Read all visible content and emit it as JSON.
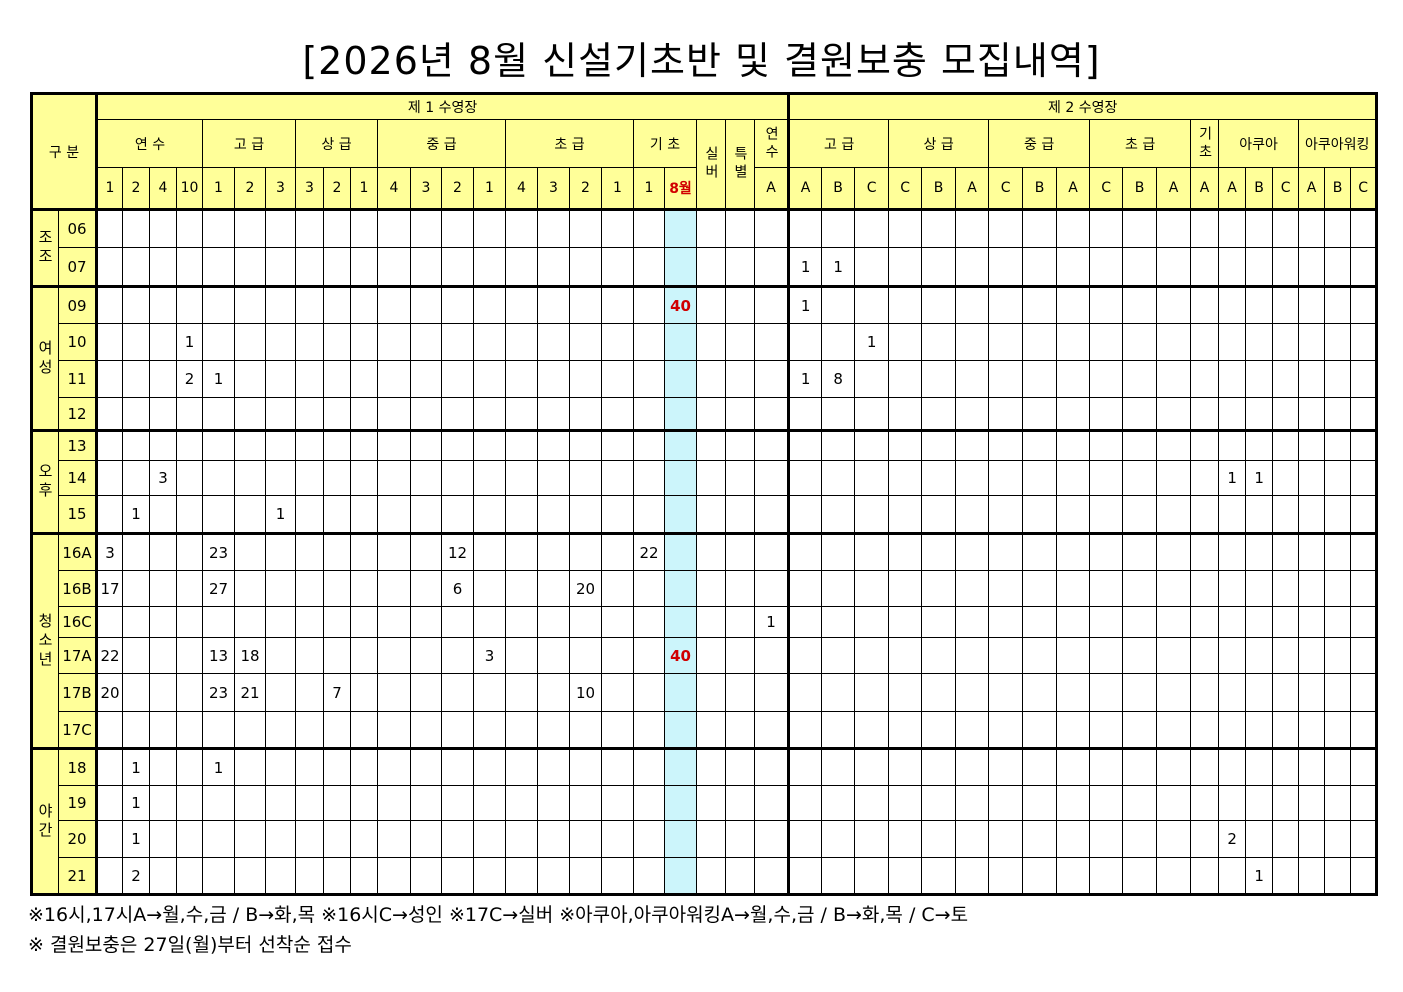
{
  "title": "[2026년 8월 신설기초반 및 결원보충 모집내역]",
  "header": {
    "corner": "구 분",
    "pools": [
      {
        "name": "제 1 수영장",
        "groups": [
          {
            "name": "연 수",
            "cols": [
              "1",
              "2",
              "4",
              "10"
            ]
          },
          {
            "name": "고 급",
            "cols": [
              "1",
              "2",
              "3"
            ]
          },
          {
            "name": "상 급",
            "cols": [
              "3",
              "2",
              "1"
            ]
          },
          {
            "name": "중 급",
            "cols": [
              "4",
              "3",
              "2",
              "1"
            ]
          },
          {
            "name": "초 급",
            "cols": [
              "4",
              "3",
              "2",
              "1"
            ]
          },
          {
            "name": "기 초",
            "cols": [
              "1",
              "8월"
            ]
          },
          {
            "name": "실버",
            "cols": []
          },
          {
            "name": "특별",
            "cols": []
          },
          {
            "name": "연수",
            "cols": [
              "A"
            ]
          }
        ]
      },
      {
        "name": "제 2 수영장",
        "groups": [
          {
            "name": "고 급",
            "cols": [
              "A",
              "B",
              "C"
            ]
          },
          {
            "name": "상 급",
            "cols": [
              "C",
              "B",
              "A"
            ]
          },
          {
            "name": "중 급",
            "cols": [
              "C",
              "B",
              "A"
            ]
          },
          {
            "name": "초 급",
            "cols": [
              "C",
              "B",
              "A"
            ]
          },
          {
            "name": "기초",
            "cols": [
              "A"
            ]
          },
          {
            "name": "아쿠아",
            "cols": [
              "A",
              "B",
              "C"
            ]
          },
          {
            "name": "아쿠아워킹",
            "cols": [
              "A",
              "B",
              "C"
            ]
          }
        ]
      }
    ]
  },
  "sections": [
    {
      "label": "조조",
      "rows": [
        {
          "time": "06",
          "cells": [
            null,
            null,
            null,
            null,
            null,
            null,
            null,
            null,
            null,
            null,
            null,
            null,
            null,
            null,
            null,
            null,
            null,
            null,
            null,
            null,
            null,
            null,
            null,
            null,
            null,
            null,
            null,
            null,
            null,
            null,
            null,
            null,
            null,
            null,
            null,
            null,
            null,
            null,
            null,
            null,
            null,
            null
          ]
        },
        {
          "time": "07",
          "cells": [
            null,
            null,
            null,
            null,
            null,
            null,
            null,
            null,
            null,
            null,
            null,
            null,
            null,
            null,
            null,
            null,
            null,
            null,
            null,
            null,
            null,
            null,
            null,
            1,
            1,
            null,
            null,
            null,
            null,
            null,
            null,
            null,
            null,
            null,
            null,
            null,
            null,
            null,
            null,
            null,
            null,
            null
          ]
        }
      ]
    },
    {
      "label": "여성",
      "rows": [
        {
          "time": "09",
          "cells": [
            null,
            null,
            null,
            null,
            null,
            null,
            null,
            null,
            null,
            null,
            null,
            null,
            null,
            null,
            null,
            null,
            null,
            null,
            null,
            40,
            null,
            null,
            null,
            1,
            null,
            null,
            null,
            null,
            null,
            null,
            null,
            null,
            null,
            null,
            null,
            null,
            null,
            null,
            null,
            null,
            null,
            null
          ]
        },
        {
          "time": "10",
          "cells": [
            null,
            null,
            null,
            1,
            null,
            null,
            null,
            null,
            null,
            null,
            null,
            null,
            null,
            null,
            null,
            null,
            null,
            null,
            null,
            null,
            null,
            null,
            null,
            null,
            null,
            1,
            null,
            null,
            null,
            null,
            null,
            null,
            null,
            null,
            null,
            null,
            null,
            null,
            null,
            null,
            null,
            null
          ]
        },
        {
          "time": "11",
          "cells": [
            null,
            null,
            null,
            2,
            1,
            null,
            null,
            null,
            null,
            null,
            null,
            null,
            null,
            null,
            null,
            null,
            null,
            null,
            null,
            null,
            null,
            null,
            null,
            1,
            8,
            null,
            null,
            null,
            null,
            null,
            null,
            null,
            null,
            null,
            null,
            null,
            null,
            null,
            null,
            null,
            null,
            null
          ]
        },
        {
          "time": "12",
          "cells": [
            null,
            null,
            null,
            null,
            null,
            null,
            null,
            null,
            null,
            null,
            null,
            null,
            null,
            null,
            null,
            null,
            null,
            null,
            null,
            null,
            null,
            null,
            null,
            null,
            null,
            null,
            null,
            null,
            null,
            null,
            null,
            null,
            null,
            null,
            null,
            null,
            null,
            null,
            null,
            null,
            null,
            null
          ]
        }
      ]
    },
    {
      "label": "오후",
      "rows": [
        {
          "time": "13",
          "cells": [
            null,
            null,
            null,
            null,
            null,
            null,
            null,
            null,
            null,
            null,
            null,
            null,
            null,
            null,
            null,
            null,
            null,
            null,
            null,
            null,
            null,
            null,
            null,
            null,
            null,
            null,
            null,
            null,
            null,
            null,
            null,
            null,
            null,
            null,
            null,
            null,
            null,
            null,
            null,
            null,
            null,
            null
          ]
        },
        {
          "time": "14",
          "cells": [
            null,
            null,
            3,
            null,
            null,
            null,
            null,
            null,
            null,
            null,
            null,
            null,
            null,
            null,
            null,
            null,
            null,
            null,
            null,
            null,
            null,
            null,
            null,
            null,
            null,
            null,
            null,
            null,
            null,
            null,
            null,
            null,
            null,
            null,
            null,
            null,
            1,
            1,
            null,
            null,
            null,
            null
          ]
        },
        {
          "time": "15",
          "cells": [
            null,
            1,
            null,
            null,
            null,
            null,
            1,
            null,
            null,
            null,
            null,
            null,
            null,
            null,
            null,
            null,
            null,
            null,
            null,
            null,
            null,
            null,
            null,
            null,
            null,
            null,
            null,
            null,
            null,
            null,
            null,
            null,
            null,
            null,
            null,
            null,
            null,
            null,
            null,
            null,
            null,
            null
          ]
        }
      ]
    },
    {
      "label": "청소년",
      "rows": [
        {
          "time": "16A",
          "cells": [
            3,
            null,
            null,
            null,
            23,
            null,
            null,
            null,
            null,
            null,
            null,
            null,
            12,
            null,
            null,
            null,
            null,
            null,
            22,
            null,
            null,
            null,
            null,
            null,
            null,
            null,
            null,
            null,
            null,
            null,
            null,
            null,
            null,
            null,
            null,
            null,
            null,
            null,
            null,
            null,
            null,
            null
          ]
        },
        {
          "time": "16B",
          "cells": [
            17,
            null,
            null,
            null,
            27,
            null,
            null,
            null,
            null,
            null,
            null,
            null,
            6,
            null,
            null,
            null,
            20,
            null,
            null,
            null,
            null,
            null,
            null,
            null,
            null,
            null,
            null,
            null,
            null,
            null,
            null,
            null,
            null,
            null,
            null,
            null,
            null,
            null,
            null,
            null,
            null,
            null
          ]
        },
        {
          "time": "16C",
          "cells": [
            null,
            null,
            null,
            null,
            null,
            null,
            null,
            null,
            null,
            null,
            null,
            null,
            null,
            null,
            null,
            null,
            null,
            null,
            null,
            null,
            null,
            null,
            1,
            null,
            null,
            null,
            null,
            null,
            null,
            null,
            null,
            null,
            null,
            null,
            null,
            null,
            null,
            null,
            null,
            null,
            null,
            null
          ]
        },
        {
          "time": "17A",
          "cells": [
            22,
            null,
            null,
            null,
            13,
            18,
            null,
            null,
            null,
            null,
            null,
            null,
            null,
            3,
            null,
            null,
            null,
            null,
            null,
            40,
            null,
            null,
            null,
            null,
            null,
            null,
            null,
            null,
            null,
            null,
            null,
            null,
            null,
            null,
            null,
            null,
            null,
            null,
            null,
            null,
            null,
            null
          ]
        },
        {
          "time": "17B",
          "cells": [
            20,
            null,
            null,
            null,
            23,
            21,
            null,
            null,
            7,
            null,
            null,
            null,
            null,
            null,
            null,
            null,
            10,
            null,
            null,
            null,
            null,
            null,
            null,
            null,
            null,
            null,
            null,
            null,
            null,
            null,
            null,
            null,
            null,
            null,
            null,
            null,
            null,
            null,
            null,
            null,
            null,
            null
          ]
        },
        {
          "time": "17C",
          "cells": [
            null,
            null,
            null,
            null,
            null,
            null,
            null,
            null,
            null,
            null,
            null,
            null,
            null,
            null,
            null,
            null,
            null,
            null,
            null,
            null,
            null,
            null,
            null,
            null,
            null,
            null,
            null,
            null,
            null,
            null,
            null,
            null,
            null,
            null,
            null,
            null,
            null,
            null,
            null,
            null,
            null,
            null
          ]
        }
      ]
    },
    {
      "label": "야간",
      "rows": [
        {
          "time": "18",
          "cells": [
            null,
            1,
            null,
            null,
            1,
            null,
            null,
            null,
            null,
            null,
            null,
            null,
            null,
            null,
            null,
            null,
            null,
            null,
            null,
            null,
            null,
            null,
            null,
            null,
            null,
            null,
            null,
            null,
            null,
            null,
            null,
            null,
            null,
            null,
            null,
            null,
            null,
            null,
            null,
            null,
            null,
            null
          ]
        },
        {
          "time": "19",
          "cells": [
            null,
            1,
            null,
            null,
            null,
            null,
            null,
            null,
            null,
            null,
            null,
            null,
            null,
            null,
            null,
            null,
            null,
            null,
            null,
            null,
            null,
            null,
            null,
            null,
            null,
            null,
            null,
            null,
            null,
            null,
            null,
            null,
            null,
            null,
            null,
            null,
            null,
            null,
            null,
            null,
            null,
            null
          ]
        },
        {
          "time": "20",
          "cells": [
            null,
            1,
            null,
            null,
            null,
            null,
            null,
            null,
            null,
            null,
            null,
            null,
            null,
            null,
            null,
            null,
            null,
            null,
            null,
            null,
            null,
            null,
            null,
            null,
            null,
            null,
            null,
            null,
            null,
            null,
            null,
            null,
            null,
            null,
            null,
            null,
            2,
            null,
            null,
            null,
            null,
            null
          ]
        },
        {
          "time": "21",
          "cells": [
            null,
            2,
            null,
            null,
            null,
            null,
            null,
            null,
            null,
            null,
            null,
            null,
            null,
            null,
            null,
            null,
            null,
            null,
            null,
            null,
            null,
            null,
            null,
            null,
            null,
            null,
            null,
            null,
            null,
            null,
            null,
            null,
            null,
            null,
            null,
            null,
            null,
            1,
            null,
            null,
            null,
            null
          ]
        }
      ]
    }
  ],
  "notes": [
    "※16시,17시A→월,수,금 / B→화,목 ※16시C→성인 ※17C→실버 ※아쿠아,아쿠아워킹A→월,수,금 / B→화,목 / C→토",
    "※ 결원보충은 27일(월)부터 선착순 접수"
  ]
}
